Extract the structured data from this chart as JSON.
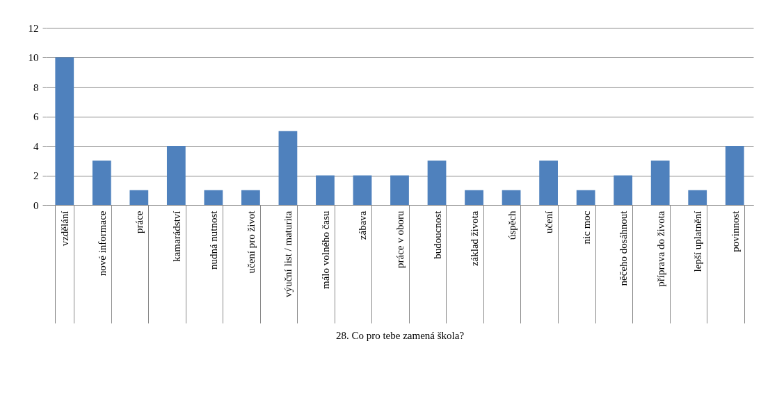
{
  "chart_data": {
    "type": "bar",
    "categories": [
      "vzdělání",
      "nové informace",
      "práce",
      "kamarádství",
      "nudná nutnost",
      "učení pro život",
      "výuční list / maturita",
      "málo volného času",
      "zábava",
      "práce v oboru",
      "budoucnost",
      "základ života",
      "úspěch",
      "učení",
      "nic moc",
      "něčeho dosáhnout",
      "příprava do života",
      "lepší uplatnění",
      "povinnost"
    ],
    "values": [
      10,
      3,
      1,
      4,
      1,
      1,
      5,
      2,
      2,
      2,
      3,
      1,
      1,
      3,
      1,
      2,
      3,
      1,
      4
    ],
    "color": "#4f81bd",
    "xlabel": "28. Co pro tebe zamená škola?",
    "ylim": [
      0,
      12
    ],
    "yticks": [
      0,
      2,
      4,
      6,
      8,
      10,
      12
    ],
    "grid": "y"
  }
}
